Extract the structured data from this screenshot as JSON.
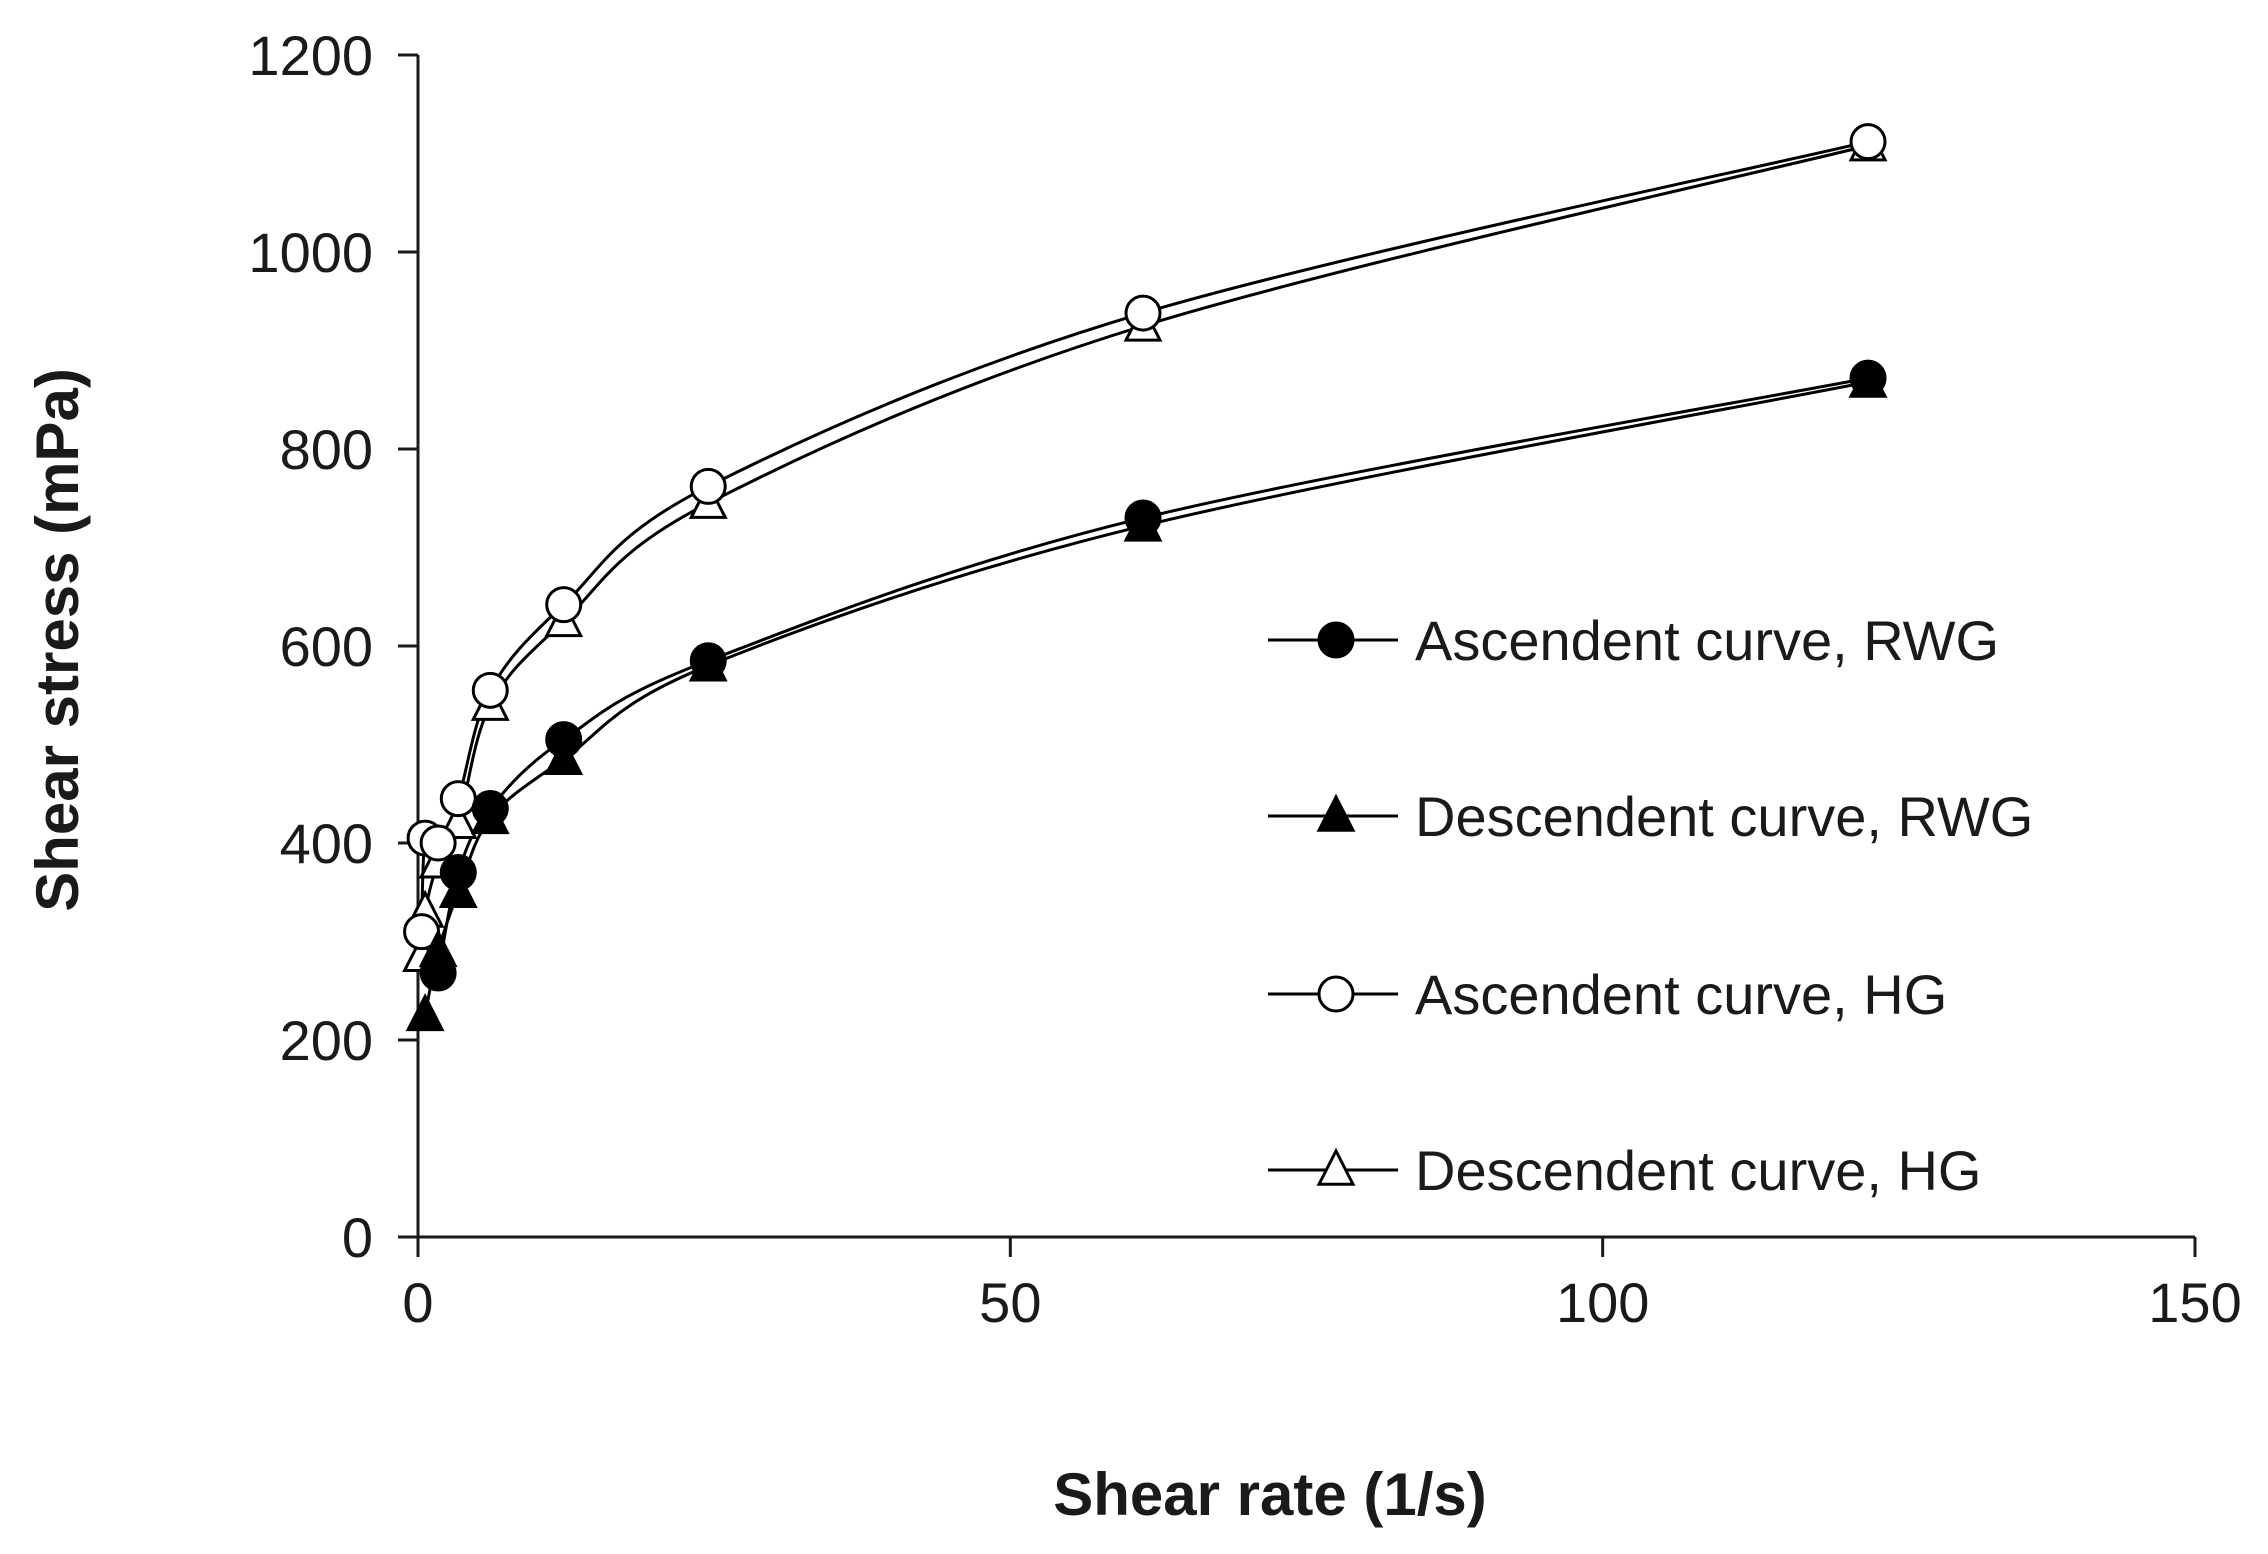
{
  "chart_data": {
    "type": "line",
    "title": "",
    "xlabel": "Shear rate (1/s)",
    "ylabel": "Shear stress  (mPa)",
    "xlim": [
      0,
      150
    ],
    "ylim": [
      0,
      1200
    ],
    "xticks": [
      0,
      50,
      100,
      150
    ],
    "yticks": [
      0,
      200,
      400,
      600,
      800,
      1000,
      1200
    ],
    "grid": false,
    "legend_position": "right",
    "series": [
      {
        "name": "Ascendent curve, RWG",
        "marker": "filled-circle",
        "x": [
          1.7,
          3.4,
          6.1,
          12.3,
          24.5,
          61.2,
          122.4
        ],
        "y": [
          268,
          370,
          435,
          505,
          585,
          730,
          872
        ]
      },
      {
        "name": "Descendent curve, RWG",
        "marker": "filled-triangle",
        "x": [
          0.6,
          1.7,
          3.4,
          6.1,
          12.3,
          24.5,
          61.2,
          122.4
        ],
        "y": [
          225,
          290,
          350,
          425,
          485,
          580,
          722,
          868
        ]
      },
      {
        "name": "Ascendent curve, HG",
        "marker": "open-circle",
        "x": [
          0.3,
          0.6,
          1.7,
          3.4,
          6.1,
          12.3,
          24.5,
          61.2,
          122.4
        ],
        "y": [
          310,
          405,
          400,
          445,
          555,
          642,
          762,
          938,
          1112
        ]
      },
      {
        "name": "Descendent curve, HG",
        "marker": "open-triangle",
        "x": [
          0.3,
          0.6,
          1.7,
          3.4,
          6.1,
          12.3,
          24.5,
          61.2,
          122.4
        ],
        "y": [
          285,
          330,
          380,
          420,
          540,
          625,
          745,
          925,
          1108
        ]
      }
    ]
  }
}
